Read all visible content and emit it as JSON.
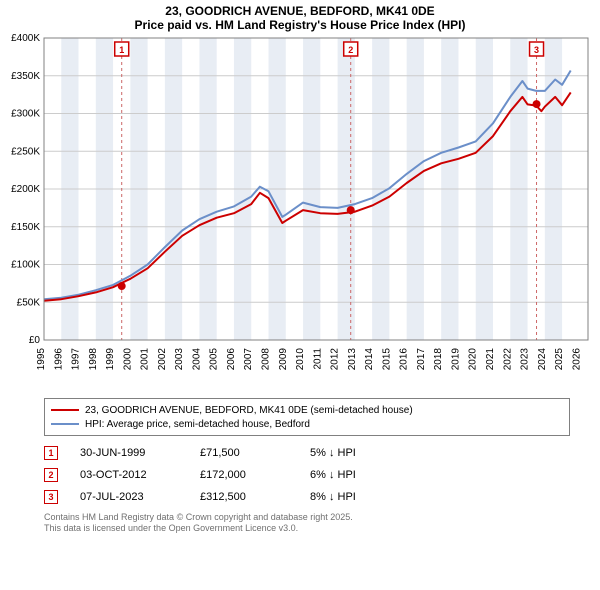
{
  "title": "23, GOODRICH AVENUE, BEDFORD, MK41 0DE",
  "subtitle": "Price paid vs. HM Land Registry's House Price Index (HPI)",
  "chart": {
    "type": "line",
    "background_color": "#ffffff",
    "plot_bg": "#ffffff",
    "alt_band_color": "#e8edf4",
    "grid_color": "#cccccc",
    "xlim": [
      1995,
      2026.5
    ],
    "ylim": [
      0,
      400000
    ],
    "xtick_step": 1,
    "ytick_step": 50000,
    "xticks": [
      1995,
      1996,
      1997,
      1998,
      1999,
      2000,
      2001,
      2002,
      2003,
      2004,
      2005,
      2006,
      2007,
      2008,
      2009,
      2010,
      2011,
      2012,
      2013,
      2014,
      2015,
      2016,
      2017,
      2018,
      2019,
      2020,
      2021,
      2022,
      2023,
      2024,
      2025,
      2026
    ],
    "ytick_labels": [
      "£0",
      "£50K",
      "£100K",
      "£150K",
      "£200K",
      "£250K",
      "£300K",
      "£350K",
      "£400K"
    ],
    "ytick_values": [
      0,
      50000,
      100000,
      150000,
      200000,
      250000,
      300000,
      350000,
      400000
    ],
    "xlabel_fontsize": 10,
    "ylabel_fontsize": 10,
    "tick_fontsize": 10,
    "line_width": 2,
    "series": [
      {
        "name": "paid",
        "label": "23, GOODRICH AVENUE, BEDFORD, MK41 0DE (semi-detached house)",
        "color": "#cc0000",
        "xs": [
          1995,
          1996,
          1997,
          1998,
          1999,
          2000,
          2001,
          2002,
          2003,
          2004,
          2005,
          2006,
          2007,
          2007.5,
          2008,
          2008.8,
          2009,
          2010,
          2011,
          2012,
          2013,
          2014,
          2015,
          2016,
          2017,
          2018,
          2019,
          2020,
          2021,
          2022,
          2022.7,
          2023,
          2023.5,
          2023.8,
          2024,
          2024.6,
          2025,
          2025.5
        ],
        "ys": [
          52000,
          54000,
          58000,
          63000,
          70000,
          81000,
          95000,
          117000,
          138000,
          152000,
          162000,
          168000,
          180000,
          195000,
          188000,
          155000,
          158000,
          172000,
          168000,
          167000,
          170000,
          178000,
          190000,
          208000,
          224000,
          234000,
          240000,
          248000,
          270000,
          303000,
          322000,
          312000,
          310500,
          303000,
          309000,
          322000,
          311000,
          328000
        ]
      },
      {
        "name": "hpi",
        "label": "HPI: Average price, semi-detached house, Bedford",
        "color": "#6b8fc9",
        "xs": [
          1995,
          1996,
          1997,
          1998,
          1999,
          2000,
          2001,
          2002,
          2003,
          2004,
          2005,
          2006,
          2007,
          2007.5,
          2008,
          2008.8,
          2009,
          2010,
          2011,
          2012,
          2013,
          2014,
          2015,
          2016,
          2017,
          2018,
          2019,
          2020,
          2021,
          2022,
          2022.7,
          2023,
          2023.5,
          2024,
          2024.6,
          2025,
          2025.5
        ],
        "ys": [
          54000,
          56000,
          60000,
          66000,
          73000,
          85000,
          100000,
          123000,
          145000,
          160000,
          170000,
          177000,
          190000,
          203000,
          197000,
          163000,
          166000,
          182000,
          176000,
          175000,
          180000,
          188000,
          201000,
          220000,
          237000,
          248000,
          255000,
          263000,
          287000,
          322000,
          343000,
          333000,
          330000,
          330000,
          345000,
          338000,
          357000
        ]
      }
    ],
    "sale_markers": {
      "box_border": "#cc0000",
      "box_fill": "#ffffff",
      "guideline_color": "#cc6666",
      "guideline_dash": "3,3",
      "point_color": "#cc0000",
      "point_radius": 4,
      "items": [
        {
          "n": "1",
          "x": 1999.5,
          "y": 71500
        },
        {
          "n": "2",
          "x": 2012.76,
          "y": 172000
        },
        {
          "n": "3",
          "x": 2023.52,
          "y": 312500
        }
      ]
    }
  },
  "legend": {
    "paid": "23, GOODRICH AVENUE, BEDFORD, MK41 0DE (semi-detached house)",
    "hpi": "HPI: Average price, semi-detached house, Bedford"
  },
  "sales": [
    {
      "n": "1",
      "date": "30-JUN-1999",
      "price": "£71,500",
      "pct": "5% ↓ HPI"
    },
    {
      "n": "2",
      "date": "03-OCT-2012",
      "price": "£172,000",
      "pct": "6% ↓ HPI"
    },
    {
      "n": "3",
      "date": "07-JUL-2023",
      "price": "£312,500",
      "pct": "8% ↓ HPI"
    }
  ],
  "footer": {
    "line1": "Contains HM Land Registry data © Crown copyright and database right 2025.",
    "line2": "This data is licensed under the Open Government Licence v3.0."
  }
}
